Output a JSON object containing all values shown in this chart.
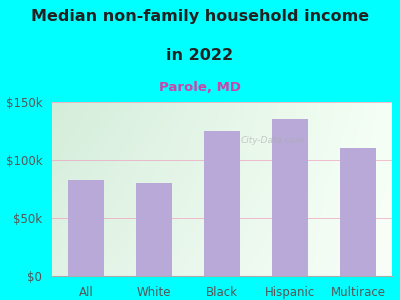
{
  "title_line1": "Median non-family household income",
  "title_line2": "in 2022",
  "subtitle": "Parole, MD",
  "categories": [
    "All",
    "White",
    "Black",
    "Hispanic",
    "Multirace"
  ],
  "values": [
    83000,
    80000,
    125000,
    135000,
    110000
  ],
  "bar_color": "#b8a9d9",
  "background_color": "#00FFFF",
  "plot_bg_left": "#d4edda",
  "plot_bg_right": "#f0f8f0",
  "title_color": "#222222",
  "subtitle_color": "#cc44aa",
  "tick_label_color": "#555555",
  "grid_color": "#f0a0c0",
  "ylim": [
    0,
    150000
  ],
  "yticks": [
    0,
    50000,
    100000,
    150000
  ],
  "ytick_labels": [
    "$0",
    "$50k",
    "$100k",
    "$150k"
  ],
  "title_fontsize": 11.5,
  "subtitle_fontsize": 9.5,
  "tick_fontsize": 8.5,
  "watermark": "City-Data.com"
}
